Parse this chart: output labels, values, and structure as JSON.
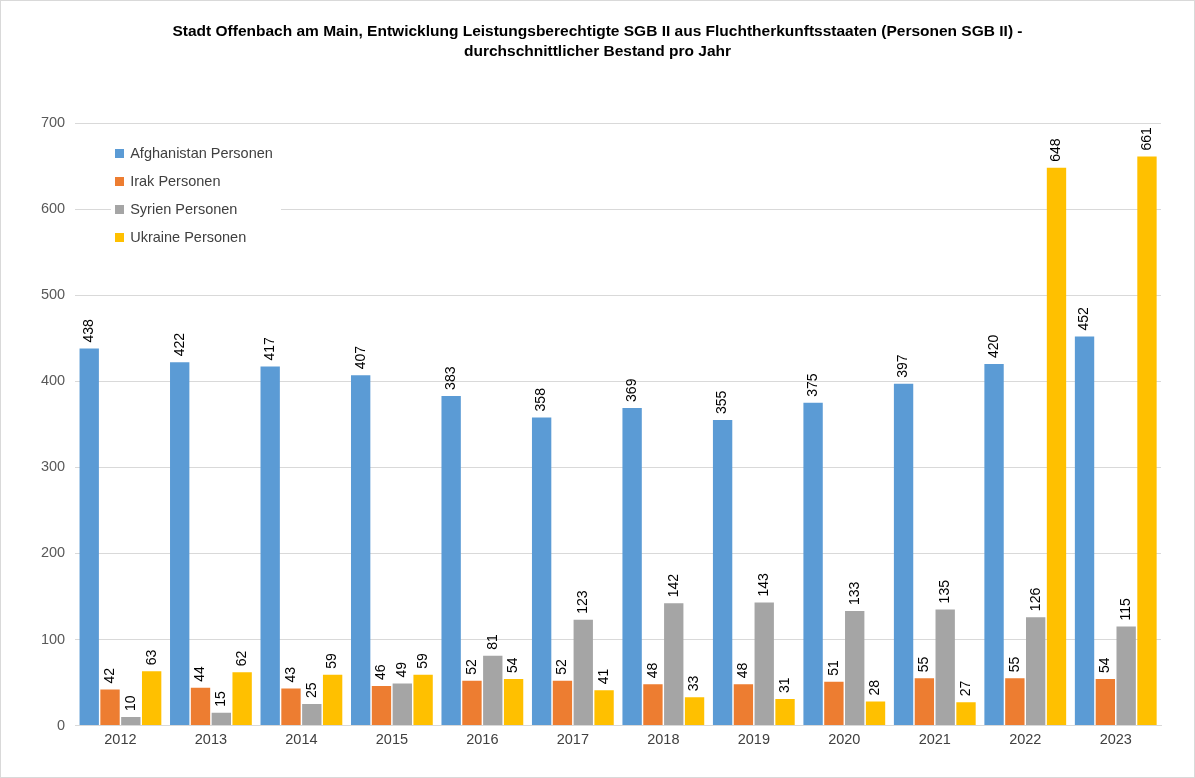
{
  "chart_data": {
    "type": "bar",
    "title": "Stadt Offenbach am Main, Entwicklung Leistungsberechtigte SGB II aus Fluchtherkunftsstaaten (Personen SGB II) - durchschnittlicher Bestand pro Jahr",
    "categories": [
      "2012",
      "2013",
      "2014",
      "2015",
      "2016",
      "2017",
      "2018",
      "2019",
      "2020",
      "2021",
      "2022",
      "2023"
    ],
    "series": [
      {
        "name": "Afghanistan Personen",
        "color": "#5b9bd5",
        "values": [
          438,
          422,
          417,
          407,
          383,
          358,
          369,
          355,
          375,
          397,
          420,
          452
        ]
      },
      {
        "name": "Irak Personen",
        "color": "#ed7d31",
        "values": [
          42,
          44,
          43,
          46,
          52,
          52,
          48,
          48,
          51,
          55,
          55,
          54
        ]
      },
      {
        "name": "Syrien Personen",
        "color": "#a5a5a5",
        "values": [
          10,
          15,
          25,
          49,
          81,
          123,
          142,
          143,
          133,
          135,
          126,
          115
        ]
      },
      {
        "name": "Ukraine Personen",
        "color": "#ffc000",
        "values": [
          63,
          62,
          59,
          59,
          54,
          41,
          33,
          31,
          28,
          27,
          648,
          661
        ]
      }
    ],
    "ylim": [
      0,
      700
    ],
    "yticks": [
      0,
      100,
      200,
      300,
      400,
      500,
      600,
      700
    ],
    "grid": "y",
    "legend": "top left",
    "data_labels": true
  }
}
